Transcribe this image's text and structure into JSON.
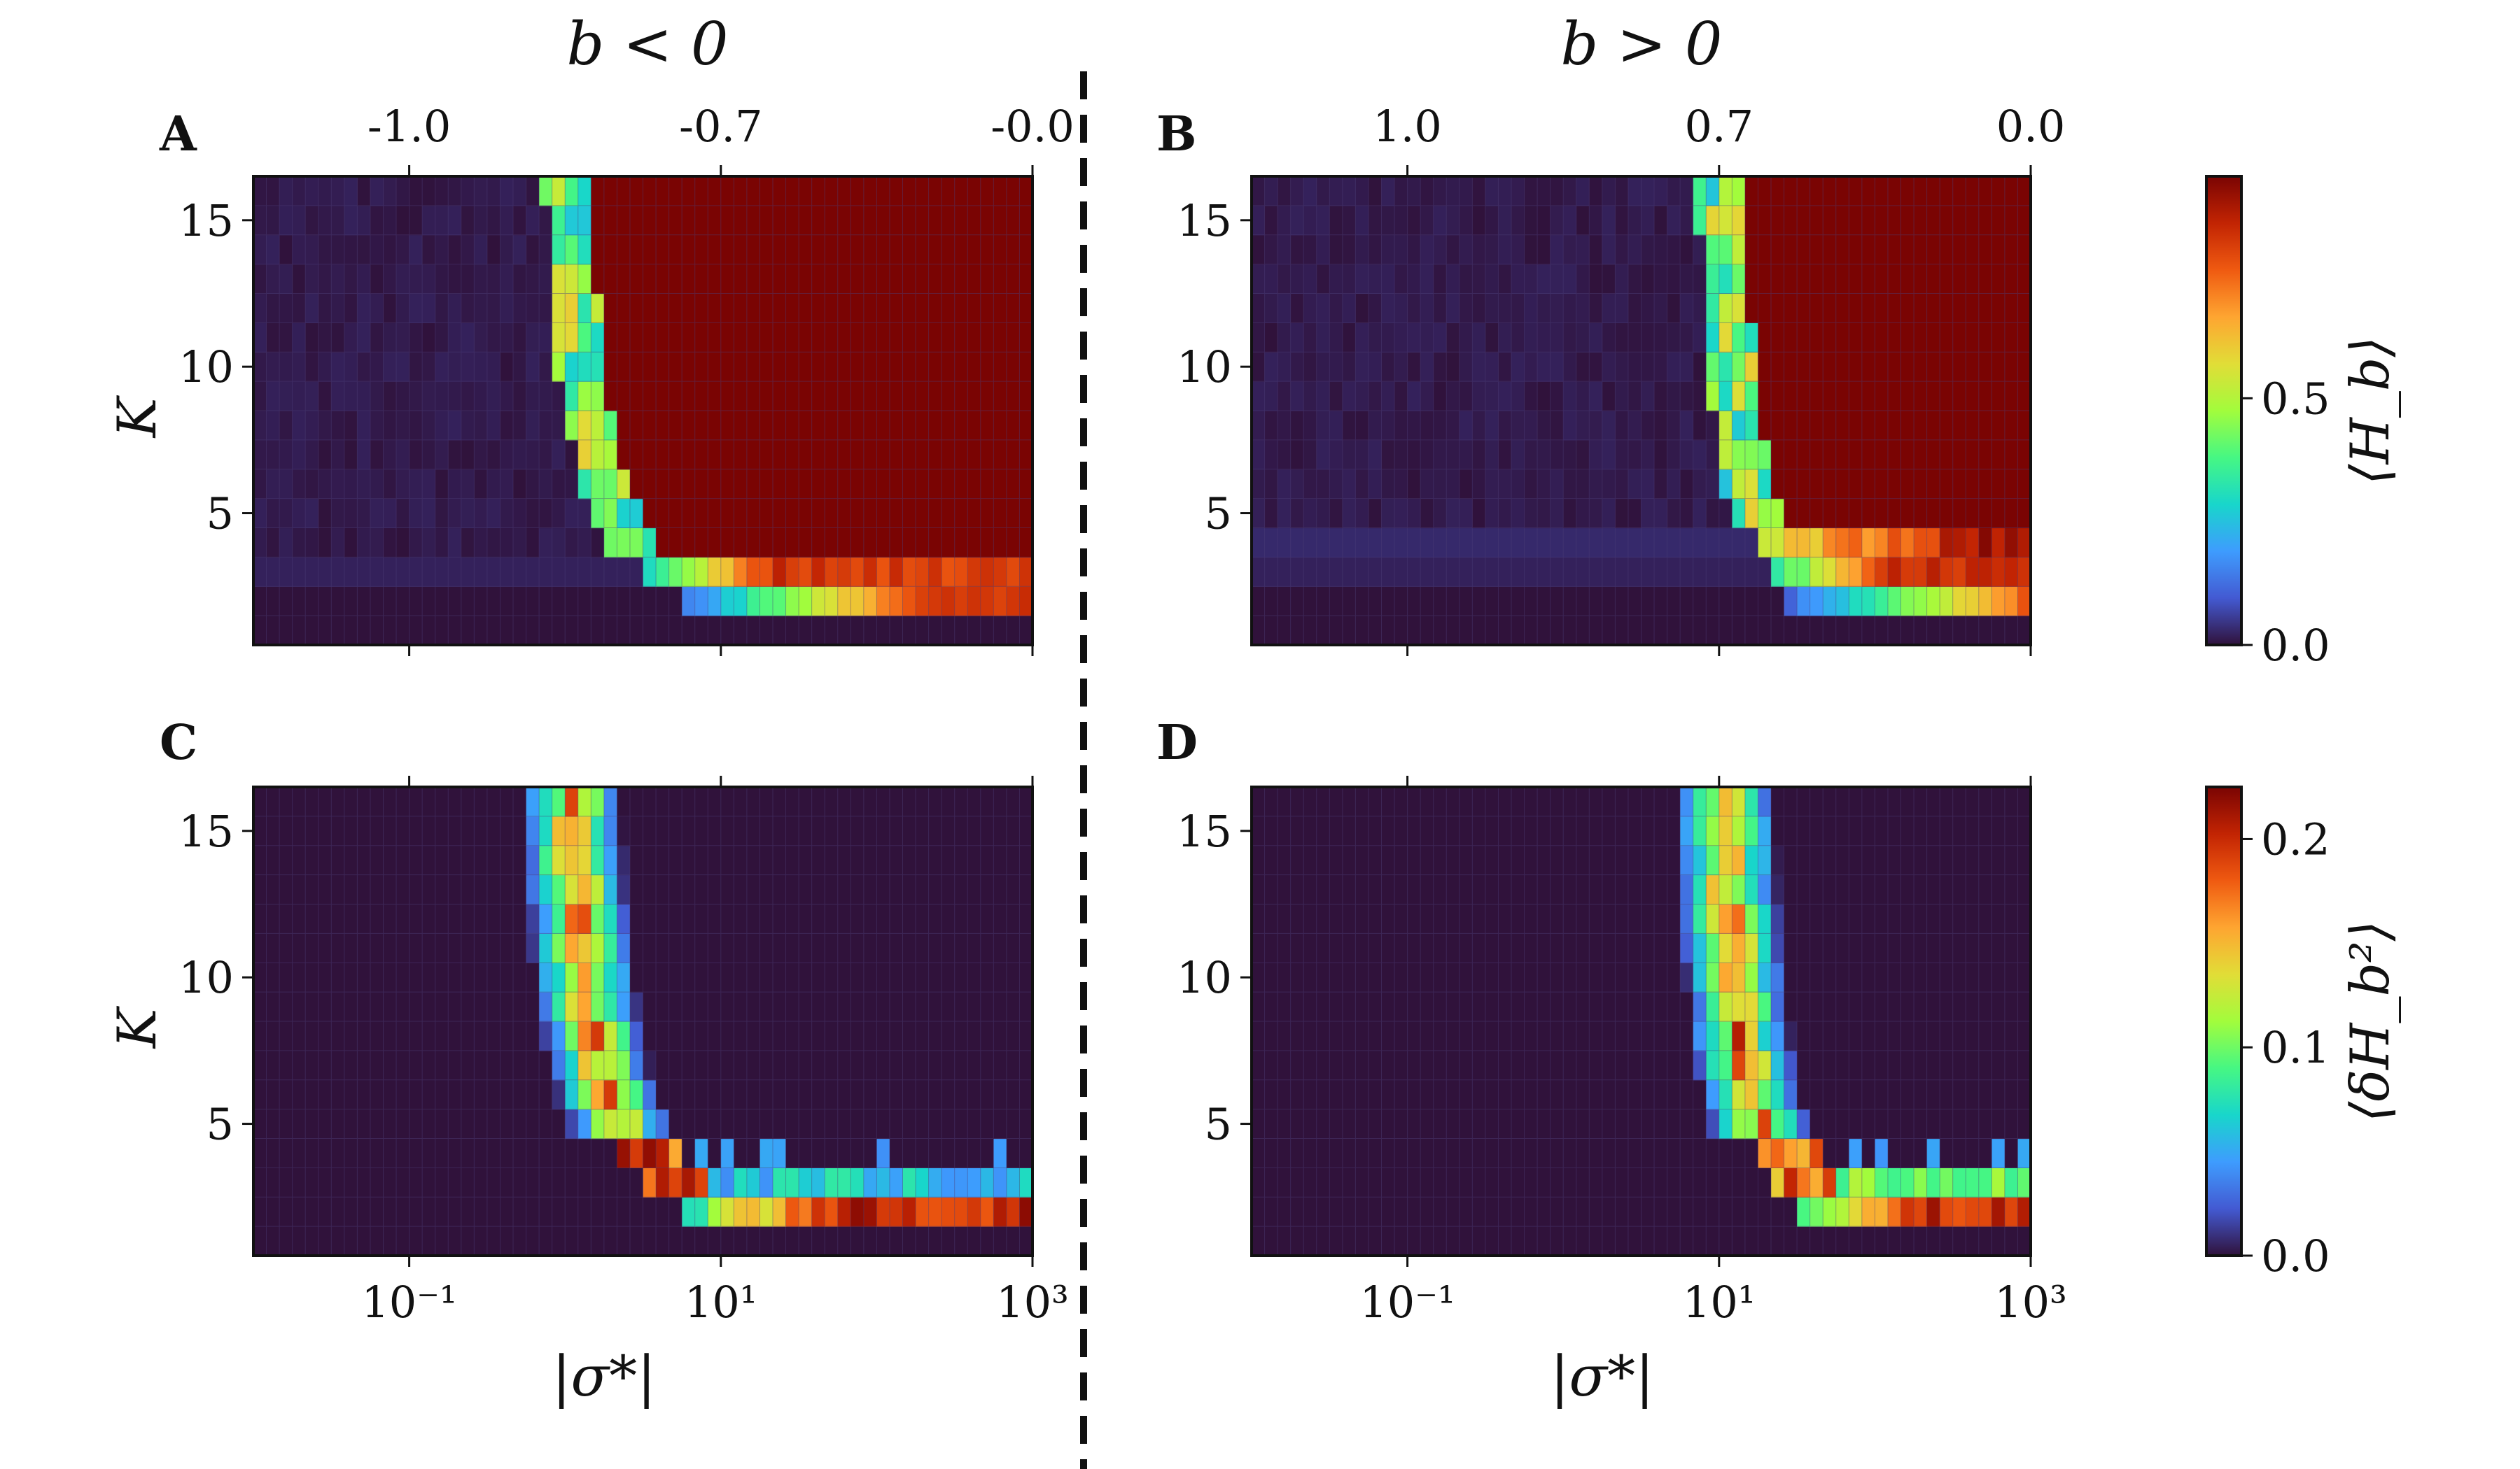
{
  "figure": {
    "header_left": "b < 0",
    "header_right": "b > 0",
    "colors": {
      "background": "#ffffff",
      "divider": "#111111",
      "frame": "#111111",
      "grid": "#4d3f78"
    }
  },
  "colorbar_top": {
    "label": "⟨H_b⟩",
    "ticks": [
      {
        "label": "0.0",
        "value": 0
      },
      {
        "label": "0.5",
        "value": 0.5
      }
    ],
    "range": [
      0,
      0.95
    ],
    "colormap": "turbo"
  },
  "colorbar_bottom": {
    "label": "⟨δH_b²⟩",
    "ticks": [
      {
        "label": "0.0",
        "value": 0
      },
      {
        "label": "0.1",
        "value": 0.1
      },
      {
        "label": "0.2",
        "value": 0.2
      }
    ],
    "range": [
      0,
      0.225
    ],
    "colormap": "turbo"
  },
  "chart_data": [
    {
      "id": "A",
      "panel_label": "A",
      "type": "heatmap",
      "quantity": "mean H_b",
      "xscale": "log",
      "xlim_log10": [
        -2,
        3
      ],
      "ylim": [
        0.5,
        16.5
      ],
      "xlabel": "",
      "ylabel": "K",
      "x_ticks": [
        {
          "label": "10⁻¹",
          "log10": -1
        },
        {
          "label": "10¹",
          "log10": 1
        },
        {
          "label": "10³",
          "log10": 3
        }
      ],
      "x_ticks_visible": false,
      "y_ticks": [
        {
          "label": "5",
          "value": 5
        },
        {
          "label": "10",
          "value": 10
        },
        {
          "label": "15",
          "value": 15
        }
      ],
      "top_ticks": [
        {
          "label": "-1.0",
          "log10": -1
        },
        {
          "label": "-0.7",
          "log10": 1
        },
        {
          "label": "-0.0",
          "log10": 3
        }
      ],
      "transition": {
        "threshold_log10": -0.18,
        "steepness": 0.0,
        "k2_value": 0.82,
        "k3_value": 0.6
      }
    },
    {
      "id": "B",
      "panel_label": "B",
      "type": "heatmap",
      "quantity": "mean H_b",
      "xscale": "log",
      "xlim_log10": [
        -2,
        3
      ],
      "ylim": [
        0.5,
        16.5
      ],
      "xlabel": "",
      "ylabel": "",
      "x_ticks": [
        {
          "label": "10⁻¹",
          "log10": -1
        },
        {
          "label": "10¹",
          "log10": 1
        },
        {
          "label": "10³",
          "log10": 3
        }
      ],
      "x_ticks_visible": false,
      "y_ticks": [
        {
          "label": "5",
          "value": 5
        },
        {
          "label": "10",
          "value": 10
        },
        {
          "label": "15",
          "value": 15
        }
      ],
      "top_ticks": [
        {
          "label": "1.0",
          "log10": -1
        },
        {
          "label": "0.7",
          "log10": 1
        },
        {
          "label": "0.0",
          "log10": 3
        }
      ],
      "transition": {
        "threshold_log10": 0.5,
        "steepness": 1.0,
        "k2_value": 0.78,
        "k3_value": 0.72
      }
    },
    {
      "id": "C",
      "panel_label": "C",
      "type": "heatmap",
      "quantity": "variance of H_b",
      "xscale": "log",
      "xlim_log10": [
        -2,
        3
      ],
      "ylim": [
        0.5,
        16.5
      ],
      "xlabel": "|σ*|",
      "ylabel": "K",
      "x_ticks": [
        {
          "label": "10⁻¹",
          "log10": -1
        },
        {
          "label": "10¹",
          "log10": 1
        },
        {
          "label": "10³",
          "log10": 3
        }
      ],
      "x_ticks_visible": true,
      "y_ticks": [
        {
          "label": "5",
          "value": 5
        },
        {
          "label": "10",
          "value": 10
        },
        {
          "label": "15",
          "value": 15
        }
      ],
      "top_ticks": [],
      "transition": {
        "threshold_log10": -0.18,
        "steepness": 0.0,
        "k2_value": 0.19,
        "k3_value": 0.055
      }
    },
    {
      "id": "D",
      "panel_label": "D",
      "type": "heatmap",
      "quantity": "variance of H_b",
      "xscale": "log",
      "xlim_log10": [
        -2,
        3
      ],
      "ylim": [
        0.5,
        16.5
      ],
      "xlabel": "|σ*|",
      "ylabel": "",
      "x_ticks": [
        {
          "label": "10⁻¹",
          "log10": -1
        },
        {
          "label": "10¹",
          "log10": 1
        },
        {
          "label": "10³",
          "log10": 3
        }
      ],
      "x_ticks_visible": true,
      "y_ticks": [
        {
          "label": "5",
          "value": 5
        },
        {
          "label": "10",
          "value": 10
        },
        {
          "label": "15",
          "value": 15
        }
      ],
      "top_ticks": [],
      "transition": {
        "threshold_log10": 0.5,
        "steepness": 1.0,
        "k2_value": 0.2,
        "k3_value": 0.1
      }
    }
  ]
}
